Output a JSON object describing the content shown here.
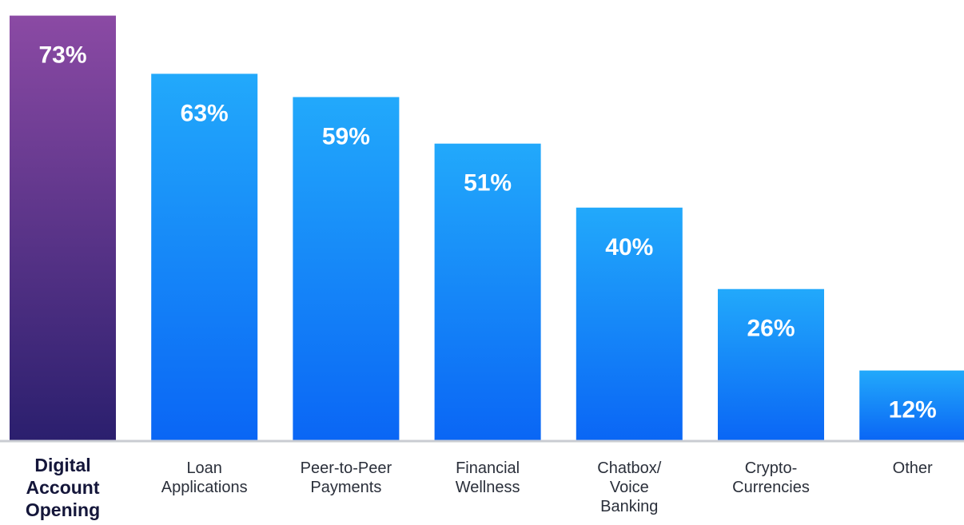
{
  "chart_data": {
    "type": "bar",
    "title": "",
    "xlabel": "",
    "ylabel": "",
    "ylim": [
      0,
      75
    ],
    "grid": false,
    "legend": "none",
    "highlight_index": 0,
    "value_suffix": "%",
    "categories": [
      [
        "Digital",
        "Account",
        "Opening"
      ],
      [
        "Loan",
        "Applications"
      ],
      [
        "Peer-to-Peer",
        "Payments"
      ],
      [
        "Financial",
        "Wellness"
      ],
      [
        "Chatbox/",
        "Voice",
        "Banking"
      ],
      [
        "Crypto-",
        "Currencies"
      ],
      [
        "Other"
      ]
    ],
    "values": [
      73,
      63,
      59,
      51,
      40,
      26,
      12
    ],
    "value_labels": [
      "73%",
      "63%",
      "59%",
      "51%",
      "40%",
      "26%",
      "12%"
    ],
    "colors": {
      "highlight_top": "#8b4aa4",
      "highlight_bottom": "#2b1f6e",
      "bar_top": "#22a9fb",
      "bar_bottom": "#0a66f5",
      "baseline": "#c9ccd2"
    }
  }
}
